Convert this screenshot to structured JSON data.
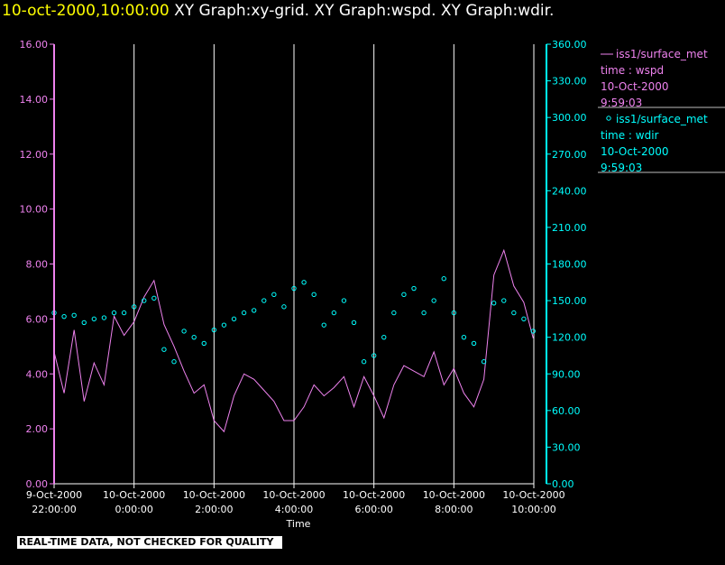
{
  "header": {
    "timestamp": "10-oct-2000,10:00:00",
    "graphs": "XY Graph:xy-grid.  XY Graph:wspd.  XY Graph:wdir."
  },
  "notice": "REAL-TIME DATA, NOT CHECKED FOR QUALITY",
  "colors": {
    "wspd": "#ee82ee",
    "wdir": "#00ffff",
    "grid": "#ffffff",
    "axis_left": "#ee82ee",
    "axis_right": "#00ffff"
  },
  "chart_data": {
    "type": "line",
    "xlabel": "Time",
    "x_range": [
      "2000-10-09T22:00:00",
      "2000-10-10T10:00:00"
    ],
    "x_ticks": [
      {
        "top": "9-Oct-2000",
        "bottom": "22:00:00",
        "t": "2000-10-09T22:00:00"
      },
      {
        "top": "10-Oct-2000",
        "bottom": "0:00:00",
        "t": "2000-10-10T00:00:00"
      },
      {
        "top": "10-Oct-2000",
        "bottom": "2:00:00",
        "t": "2000-10-10T02:00:00"
      },
      {
        "top": "10-Oct-2000",
        "bottom": "4:00:00",
        "t": "2000-10-10T04:00:00"
      },
      {
        "top": "10-Oct-2000",
        "bottom": "6:00:00",
        "t": "2000-10-10T06:00:00"
      },
      {
        "top": "10-Oct-2000",
        "bottom": "8:00:00",
        "t": "2000-10-10T08:00:00"
      },
      {
        "top": "10-Oct-2000",
        "bottom": "10:00:00",
        "t": "2000-10-10T10:00:00"
      }
    ],
    "y_left": {
      "range": [
        0,
        16
      ],
      "ticks": [
        "0.00",
        "2.00",
        "4.00",
        "6.00",
        "8.00",
        "10.00",
        "12.00",
        "14.00",
        "16.00"
      ]
    },
    "y_right": {
      "range": [
        0,
        360
      ],
      "ticks": [
        "0.00",
        "30.00",
        "60.00",
        "90.00",
        "120.00",
        "150.00",
        "180.00",
        "210.00",
        "240.00",
        "270.00",
        "300.00",
        "330.00",
        "360.00"
      ]
    },
    "grid": "vertical",
    "legend_position": "right",
    "legend": [
      {
        "name": "iss1/surface_met",
        "lines": [
          "time : wspd",
          "10-Oct-2000",
          "9:59:03"
        ]
      },
      {
        "name": "iss1/surface_met",
        "lines": [
          "time : wdir",
          "10-Oct-2000",
          "9:59:03"
        ]
      }
    ],
    "series": [
      {
        "name": "iss1/surface_met",
        "axis": "left",
        "style": "line",
        "x": [
          "2000-10-09T22:00:00",
          "2000-10-09T22:15:00",
          "2000-10-09T22:30:00",
          "2000-10-09T22:45:00",
          "2000-10-09T23:00:00",
          "2000-10-09T23:15:00",
          "2000-10-09T23:30:00",
          "2000-10-09T23:45:00",
          "2000-10-10T00:00:00",
          "2000-10-10T00:15:00",
          "2000-10-10T00:30:00",
          "2000-10-10T00:45:00",
          "2000-10-10T01:00:00",
          "2000-10-10T01:15:00",
          "2000-10-10T01:30:00",
          "2000-10-10T01:45:00",
          "2000-10-10T02:00:00",
          "2000-10-10T02:15:00",
          "2000-10-10T02:30:00",
          "2000-10-10T02:45:00",
          "2000-10-10T03:00:00",
          "2000-10-10T03:15:00",
          "2000-10-10T03:30:00",
          "2000-10-10T03:45:00",
          "2000-10-10T04:00:00",
          "2000-10-10T04:15:00",
          "2000-10-10T04:30:00",
          "2000-10-10T04:45:00",
          "2000-10-10T05:00:00",
          "2000-10-10T05:15:00",
          "2000-10-10T05:30:00",
          "2000-10-10T05:45:00",
          "2000-10-10T06:00:00",
          "2000-10-10T06:15:00",
          "2000-10-10T06:30:00",
          "2000-10-10T06:45:00",
          "2000-10-10T07:00:00",
          "2000-10-10T07:15:00",
          "2000-10-10T07:30:00",
          "2000-10-10T07:45:00",
          "2000-10-10T08:00:00",
          "2000-10-10T08:15:00",
          "2000-10-10T08:30:00",
          "2000-10-10T08:45:00",
          "2000-10-10T09:00:00",
          "2000-10-10T09:15:00",
          "2000-10-10T09:30:00",
          "2000-10-10T09:45:00",
          "2000-10-10T09:59:00"
        ],
        "y": [
          4.8,
          3.3,
          5.6,
          3.0,
          4.4,
          3.6,
          6.1,
          5.4,
          5.9,
          6.8,
          7.4,
          5.8,
          5.0,
          4.1,
          3.3,
          3.6,
          2.3,
          1.9,
          3.2,
          4.0,
          3.8,
          3.4,
          3.0,
          2.3,
          2.3,
          2.8,
          3.6,
          3.2,
          3.5,
          3.9,
          2.8,
          3.9,
          3.2,
          2.4,
          3.6,
          4.3,
          4.1,
          3.9,
          4.8,
          3.6,
          4.2,
          3.3,
          2.8,
          3.8,
          7.6,
          8.5,
          7.2,
          6.6,
          5.3
        ]
      },
      {
        "name": "iss1/surface_met",
        "axis": "right",
        "style": "scatter",
        "x": [
          "2000-10-09T22:00:00",
          "2000-10-09T22:15:00",
          "2000-10-09T22:30:00",
          "2000-10-09T22:45:00",
          "2000-10-09T23:00:00",
          "2000-10-09T23:15:00",
          "2000-10-09T23:30:00",
          "2000-10-09T23:45:00",
          "2000-10-10T00:00:00",
          "2000-10-10T00:15:00",
          "2000-10-10T00:30:00",
          "2000-10-10T00:45:00",
          "2000-10-10T01:00:00",
          "2000-10-10T01:15:00",
          "2000-10-10T01:30:00",
          "2000-10-10T01:45:00",
          "2000-10-10T02:00:00",
          "2000-10-10T02:15:00",
          "2000-10-10T02:30:00",
          "2000-10-10T02:45:00",
          "2000-10-10T03:00:00",
          "2000-10-10T03:15:00",
          "2000-10-10T03:30:00",
          "2000-10-10T03:45:00",
          "2000-10-10T04:00:00",
          "2000-10-10T04:15:00",
          "2000-10-10T04:30:00",
          "2000-10-10T04:45:00",
          "2000-10-10T05:00:00",
          "2000-10-10T05:15:00",
          "2000-10-10T05:30:00",
          "2000-10-10T05:45:00",
          "2000-10-10T06:00:00",
          "2000-10-10T06:15:00",
          "2000-10-10T06:30:00",
          "2000-10-10T06:45:00",
          "2000-10-10T07:00:00",
          "2000-10-10T07:15:00",
          "2000-10-10T07:30:00",
          "2000-10-10T07:45:00",
          "2000-10-10T08:00:00",
          "2000-10-10T08:15:00",
          "2000-10-10T08:30:00",
          "2000-10-10T08:45:00",
          "2000-10-10T09:00:00",
          "2000-10-10T09:15:00",
          "2000-10-10T09:30:00",
          "2000-10-10T09:45:00",
          "2000-10-10T09:59:00"
        ],
        "y": [
          140,
          137,
          138,
          132,
          135,
          136,
          140,
          140,
          145,
          150,
          152,
          110,
          100,
          125,
          120,
          115,
          126,
          130,
          135,
          140,
          142,
          150,
          155,
          145,
          160,
          165,
          155,
          130,
          140,
          150,
          132,
          100,
          105,
          120,
          140,
          155,
          160,
          140,
          150,
          168,
          140,
          120,
          115,
          100,
          148,
          150,
          140,
          135,
          125
        ]
      }
    ]
  }
}
